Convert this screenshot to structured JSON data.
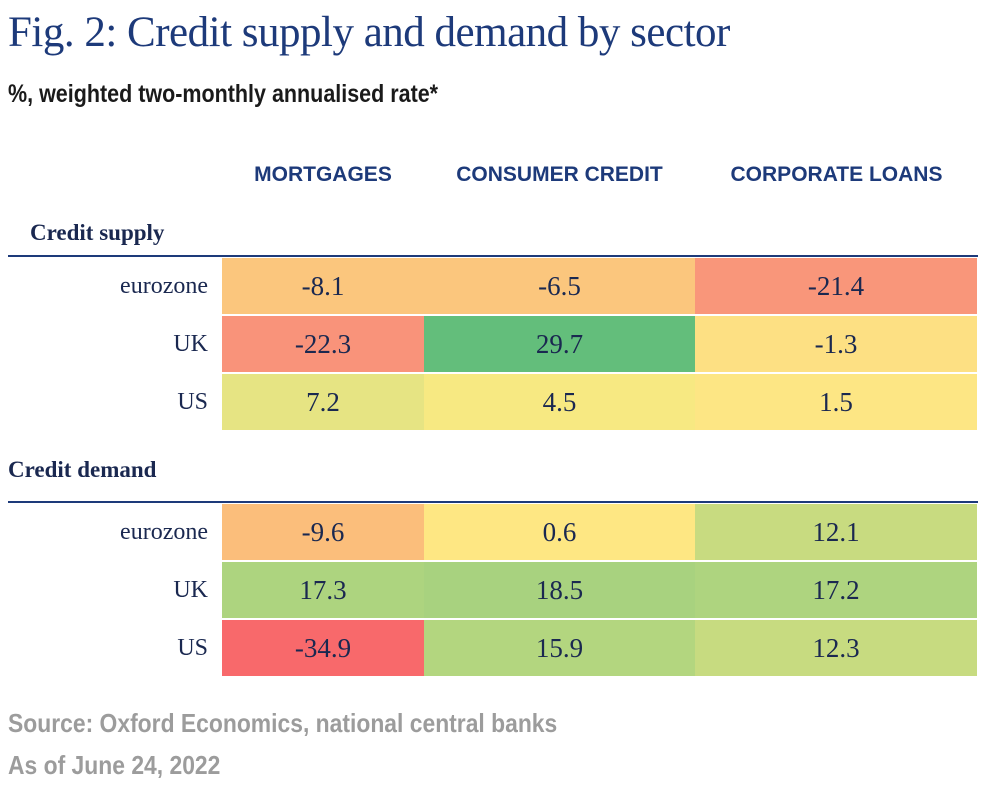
{
  "title": "Fig. 2: Credit supply and demand by sector",
  "subtitle": "%, weighted two-monthly annualised rate*",
  "source": "Source: Oxford Economics, national central banks",
  "as_of": "As of June 24, 2022",
  "colors": {
    "title": "#1d3a7a",
    "scale_low": "#f8696b",
    "scale_mid": "#ffeb84",
    "scale_high": "#63be7b"
  },
  "chart_data": {
    "type": "table",
    "columns": [
      "MORTGAGES",
      "CONSUMER CREDIT",
      "CORPORATE LOANS"
    ],
    "sections": [
      {
        "name": "Credit supply",
        "rows": [
          {
            "label": "eurozone",
            "values": [
              "-8.1",
              "-6.5",
              "-21.4"
            ],
            "colors": [
              "#fbc67d",
              "#fbc67d",
              "#f9967a"
            ]
          },
          {
            "label": "UK",
            "values": [
              "-22.3",
              "29.7",
              "-1.3"
            ],
            "colors": [
              "#f9937a",
              "#63be7b",
              "#fde083"
            ]
          },
          {
            "label": "US",
            "values": [
              "7.2",
              "4.5",
              "1.5"
            ],
            "colors": [
              "#e6e483",
              "#f7e982",
              "#fde684"
            ]
          }
        ]
      },
      {
        "name": "Credit demand",
        "rows": [
          {
            "label": "eurozone",
            "values": [
              "-9.6",
              "0.6",
              "12.1"
            ],
            "colors": [
              "#fbbe7b",
              "#fee783",
              "#c8db80"
            ]
          },
          {
            "label": "UK",
            "values": [
              "17.3",
              "18.5",
              "17.2"
            ],
            "colors": [
              "#add47f",
              "#a8d27f",
              "#aed47f"
            ]
          },
          {
            "label": "US",
            "values": [
              "-34.9",
              "15.9",
              "12.3"
            ],
            "colors": [
              "#f8696b",
              "#b3d67f",
              "#c7db80"
            ]
          }
        ]
      }
    ]
  }
}
